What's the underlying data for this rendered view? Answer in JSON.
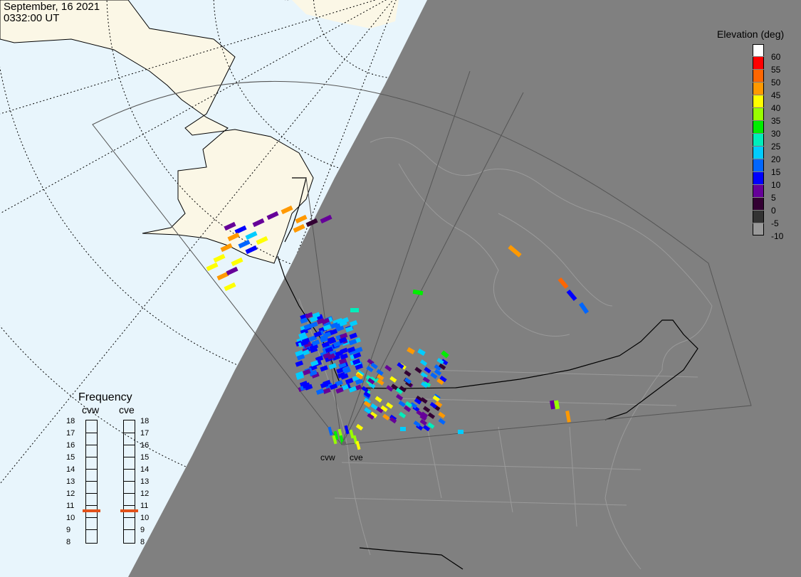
{
  "header": {
    "date": "September, 16 2021",
    "time": "0332:00 UT"
  },
  "elevation_legend": {
    "title": "Elevation (deg)",
    "levels": [
      {
        "label": "60",
        "color": "#ffffff"
      },
      {
        "label": "55",
        "color": "#ff0000"
      },
      {
        "label": "50",
        "color": "#ff6600"
      },
      {
        "label": "45",
        "color": "#ff9900"
      },
      {
        "label": "40",
        "color": "#ffff00"
      },
      {
        "label": "35",
        "color": "#99ff00"
      },
      {
        "label": "30",
        "color": "#00ee00"
      },
      {
        "label": "25",
        "color": "#00eebb"
      },
      {
        "label": "20",
        "color": "#00ccff"
      },
      {
        "label": "15",
        "color": "#0066ff"
      },
      {
        "label": "10",
        "color": "#0000ff"
      },
      {
        "label": "5",
        "color": "#660099"
      },
      {
        "label": "0",
        "color": "#330033"
      },
      {
        "label": "-5",
        "color": "#333333"
      },
      {
        "label": "-10",
        "color": "#999999"
      }
    ]
  },
  "frequency_legend": {
    "title": "Frequency",
    "radars": [
      {
        "name": "cvw",
        "current_mhz": 10.6
      },
      {
        "name": "cve",
        "current_mhz": 10.6
      }
    ],
    "scale": [
      "18",
      "17",
      "16",
      "15",
      "14",
      "13",
      "12",
      "11",
      "10",
      "9",
      "8"
    ],
    "colors": {
      "marker": "#e2521a"
    }
  },
  "sites": [
    "cvw",
    "cve"
  ],
  "colors": {
    "ocean": "#e8f5fc",
    "land": "#fbf7e6",
    "night": "#808080"
  }
}
